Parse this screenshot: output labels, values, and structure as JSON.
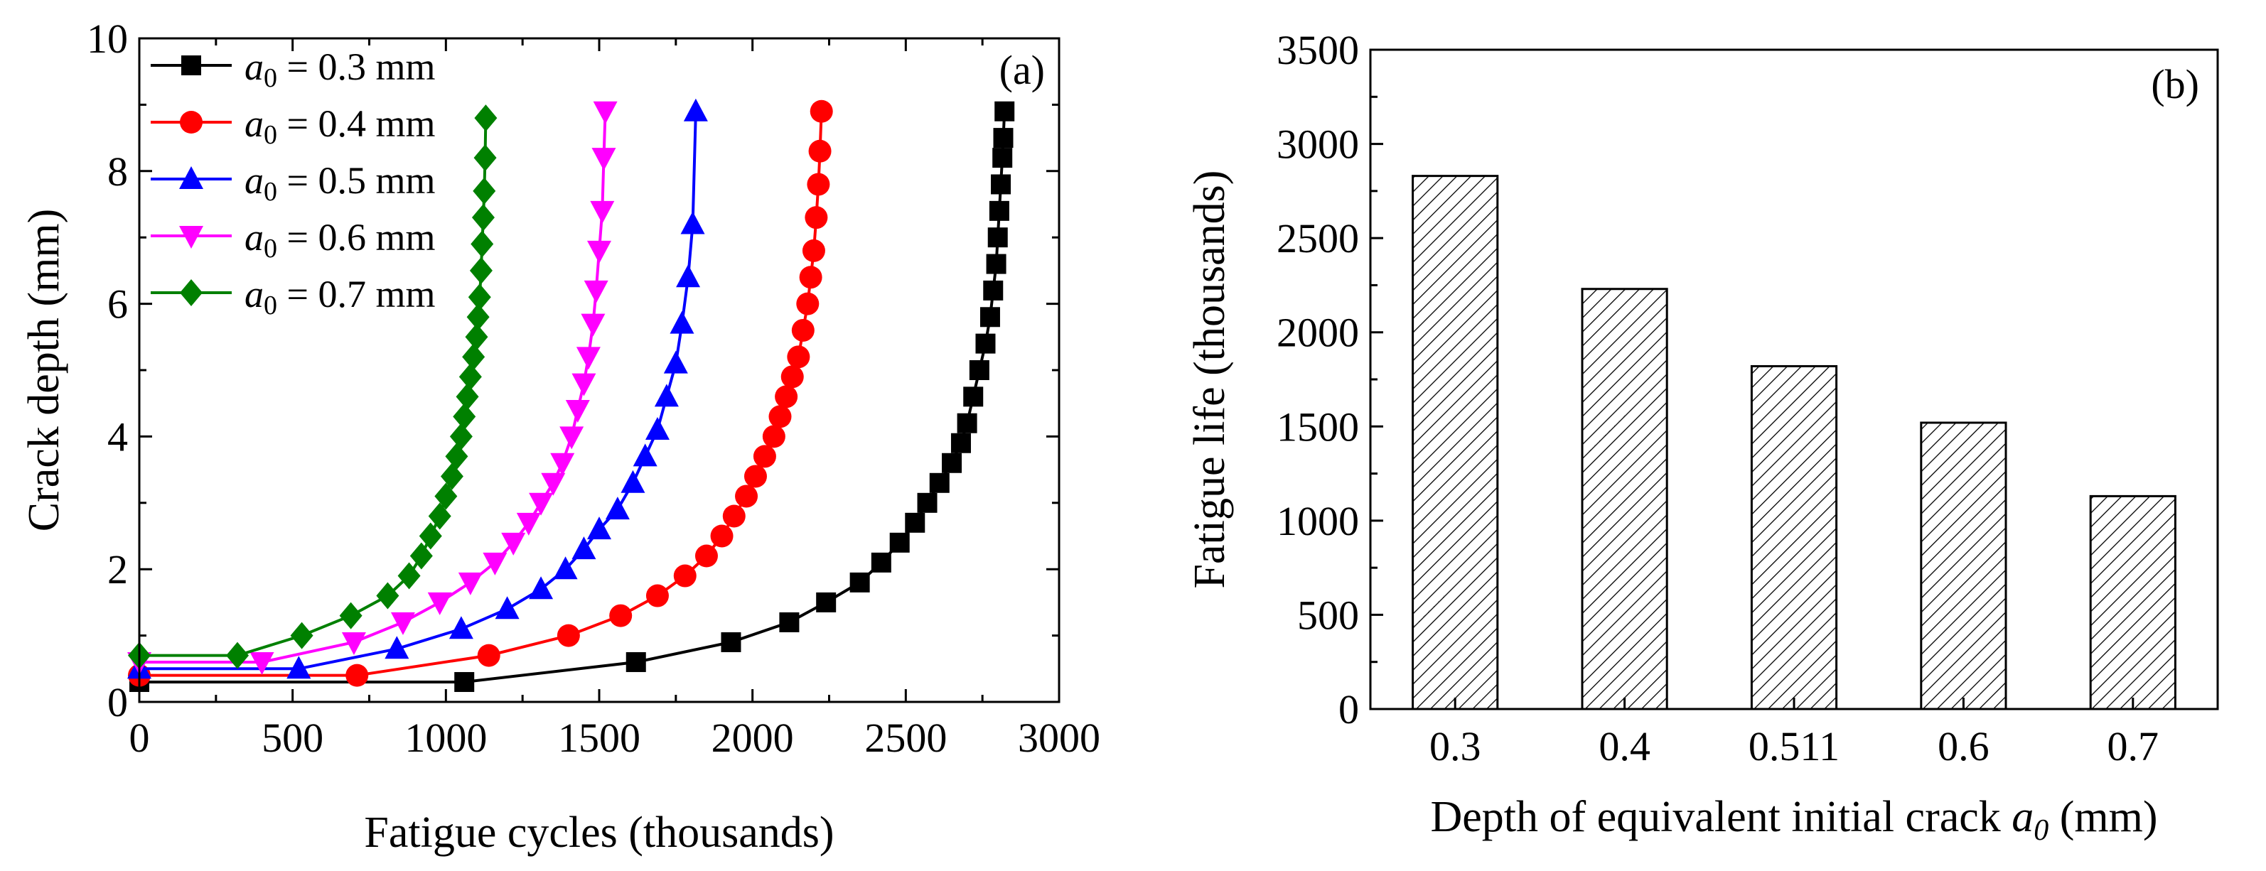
{
  "chart_data": [
    {
      "type": "line",
      "panel_label": "(a)",
      "xlabel": "Fatigue cycles (thousands)",
      "ylabel": "Crack depth (mm)",
      "xlim": [
        0,
        3000
      ],
      "ylim": [
        0,
        10
      ],
      "xticks": [
        "0",
        "500",
        "1000",
        "1500",
        "2000",
        "2500",
        "3000"
      ],
      "yticks": [
        "0",
        "2",
        "4",
        "6",
        "8",
        "10"
      ],
      "legend_var": "a",
      "legend_sub": "0",
      "series": [
        {
          "name": "a0 = 0.3 mm",
          "legend_value": " = 0.3 mm",
          "color": "#000000",
          "marker": "square",
          "x": [
            0,
            1060,
            1620,
            1930,
            2120,
            2240,
            2350,
            2420,
            2480,
            2530,
            2570,
            2610,
            2650,
            2680,
            2700,
            2720,
            2740,
            2760,
            2775,
            2785,
            2795,
            2800,
            2805,
            2810,
            2815,
            2818,
            2822
          ],
          "y": [
            0.3,
            0.3,
            0.6,
            0.9,
            1.2,
            1.5,
            1.8,
            2.1,
            2.4,
            2.7,
            3.0,
            3.3,
            3.6,
            3.9,
            4.2,
            4.6,
            5.0,
            5.4,
            5.8,
            6.2,
            6.6,
            7.0,
            7.4,
            7.8,
            8.2,
            8.5,
            8.9
          ]
        },
        {
          "name": "a0 = 0.4 mm",
          "legend_value": " = 0.4 mm",
          "color": "#ff0000",
          "marker": "circle",
          "x": [
            0,
            710,
            1140,
            1400,
            1570,
            1690,
            1780,
            1850,
            1900,
            1940,
            1980,
            2010,
            2040,
            2070,
            2090,
            2110,
            2130,
            2150,
            2165,
            2180,
            2190,
            2200,
            2208,
            2215,
            2220,
            2225
          ],
          "y": [
            0.4,
            0.4,
            0.7,
            1.0,
            1.3,
            1.6,
            1.9,
            2.2,
            2.5,
            2.8,
            3.1,
            3.4,
            3.7,
            4.0,
            4.3,
            4.6,
            4.9,
            5.2,
            5.6,
            6.0,
            6.4,
            6.8,
            7.3,
            7.8,
            8.3,
            8.9
          ]
        },
        {
          "name": "a0 = 0.5 mm",
          "legend_value": " = 0.5 mm",
          "color": "#0000ff",
          "marker": "triangle-up",
          "x": [
            0,
            520,
            840,
            1050,
            1200,
            1310,
            1390,
            1450,
            1500,
            1560,
            1610,
            1650,
            1690,
            1720,
            1750,
            1770,
            1790,
            1805,
            1815
          ],
          "y": [
            0.5,
            0.5,
            0.8,
            1.1,
            1.4,
            1.7,
            2.0,
            2.3,
            2.6,
            2.9,
            3.3,
            3.7,
            4.1,
            4.6,
            5.1,
            5.7,
            6.4,
            7.2,
            8.9
          ]
        },
        {
          "name": "a0 = 0.6 mm",
          "legend_value": " = 0.6 mm",
          "color": "#ff00ff",
          "marker": "triangle-down",
          "x": [
            0,
            400,
            700,
            860,
            980,
            1080,
            1160,
            1220,
            1270,
            1310,
            1350,
            1380,
            1410,
            1430,
            1450,
            1465,
            1480,
            1490,
            1500,
            1510,
            1515,
            1520
          ],
          "y": [
            0.6,
            0.6,
            0.9,
            1.2,
            1.5,
            1.8,
            2.1,
            2.4,
            2.7,
            3.0,
            3.3,
            3.6,
            4.0,
            4.4,
            4.8,
            5.2,
            5.7,
            6.2,
            6.8,
            7.4,
            8.2,
            8.9
          ]
        },
        {
          "name": "a0 = 0.7 mm",
          "legend_value": " = 0.7 mm",
          "color": "#008000",
          "marker": "diamond",
          "x": [
            0,
            320,
            530,
            690,
            810,
            880,
            920,
            950,
            980,
            1000,
            1020,
            1035,
            1050,
            1060,
            1070,
            1080,
            1090,
            1100,
            1105,
            1110,
            1115,
            1118,
            1122,
            1125,
            1128,
            1130
          ],
          "y": [
            0.7,
            0.7,
            1.0,
            1.3,
            1.6,
            1.9,
            2.2,
            2.5,
            2.8,
            3.1,
            3.4,
            3.7,
            4.0,
            4.3,
            4.6,
            4.9,
            5.2,
            5.5,
            5.8,
            6.1,
            6.5,
            6.9,
            7.3,
            7.7,
            8.2,
            8.8
          ]
        }
      ]
    },
    {
      "type": "bar",
      "panel_label": "(b)",
      "xlabel_main": "Depth of equivalent initial crack ",
      "xlabel_var": "a",
      "xlabel_sub": "0",
      "xlabel_unit": " (mm)",
      "ylabel": "Fatigue life (thousands)",
      "ylim": [
        0,
        3500
      ],
      "yticks": [
        "0",
        "500",
        "1000",
        "1500",
        "2000",
        "2500",
        "3000",
        "3500"
      ],
      "categories": [
        "0.3",
        "0.4",
        "0.511",
        "0.6",
        "0.7"
      ],
      "values": [
        2830,
        2230,
        1820,
        1520,
        1130
      ],
      "fill": "hatched"
    }
  ]
}
